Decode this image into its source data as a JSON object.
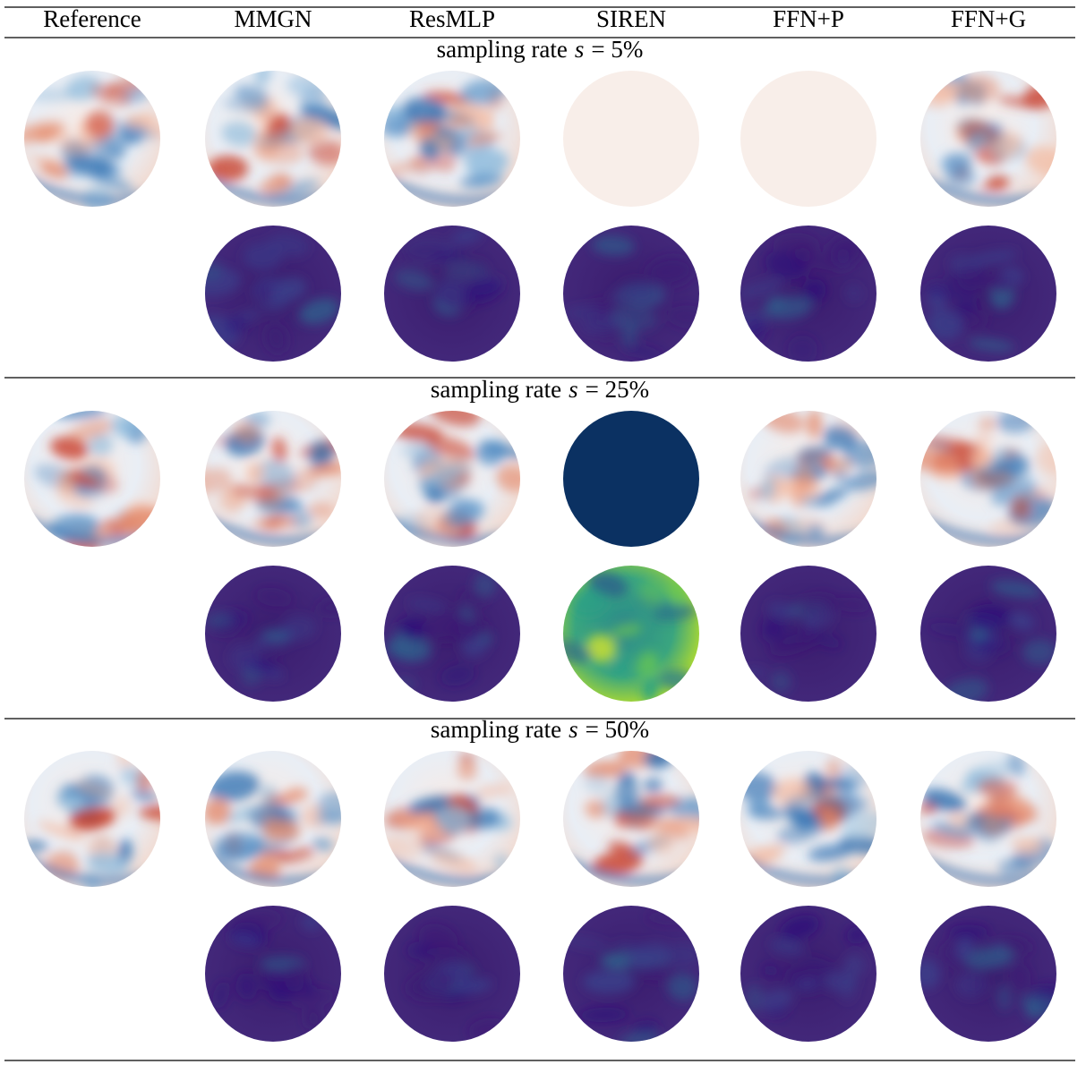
{
  "table": {
    "header": [
      "Reference",
      "MMGN",
      "ResMLP",
      "SIREN",
      "FFN+P",
      "FFN+G"
    ],
    "sections": [
      {
        "label": "sampling rate",
        "var": "s",
        "value": "= 5%"
      },
      {
        "label": "sampling rate",
        "var": "s",
        "value": "= 25%"
      },
      {
        "label": "sampling rate",
        "var": "s",
        "value": "= 50%"
      }
    ]
  }
}
